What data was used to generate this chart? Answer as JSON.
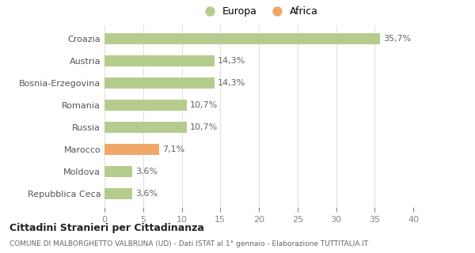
{
  "categories": [
    "Croazia",
    "Austria",
    "Bosnia-Erzegovina",
    "Romania",
    "Russia",
    "Marocco",
    "Moldova",
    "Repubblica Ceca"
  ],
  "values": [
    35.7,
    14.3,
    14.3,
    10.7,
    10.7,
    7.1,
    3.6,
    3.6
  ],
  "labels": [
    "35,7%",
    "14,3%",
    "14,3%",
    "10,7%",
    "10,7%",
    "7,1%",
    "3,6%",
    "3,6%"
  ],
  "colors": [
    "#b5cc8e",
    "#b5cc8e",
    "#b5cc8e",
    "#b5cc8e",
    "#b5cc8e",
    "#f0a868",
    "#b5cc8e",
    "#b5cc8e"
  ],
  "legend_europa_color": "#b5cc8e",
  "legend_africa_color": "#f0a868",
  "xlim": [
    0,
    40
  ],
  "xticks": [
    0,
    5,
    10,
    15,
    20,
    25,
    30,
    35,
    40
  ],
  "title": "Cittadini Stranieri per Cittadinanza",
  "subtitle": "COMUNE DI MALBORGHETTO VALBRUNA (UD) - Dati ISTAT al 1° gennaio - Elaborazione TUTTITALIA.IT",
  "background_color": "#ffffff",
  "grid_color": "#e0e0e0",
  "bar_height": 0.5,
  "label_fontsize": 8,
  "ytick_fontsize": 8,
  "xtick_fontsize": 8
}
